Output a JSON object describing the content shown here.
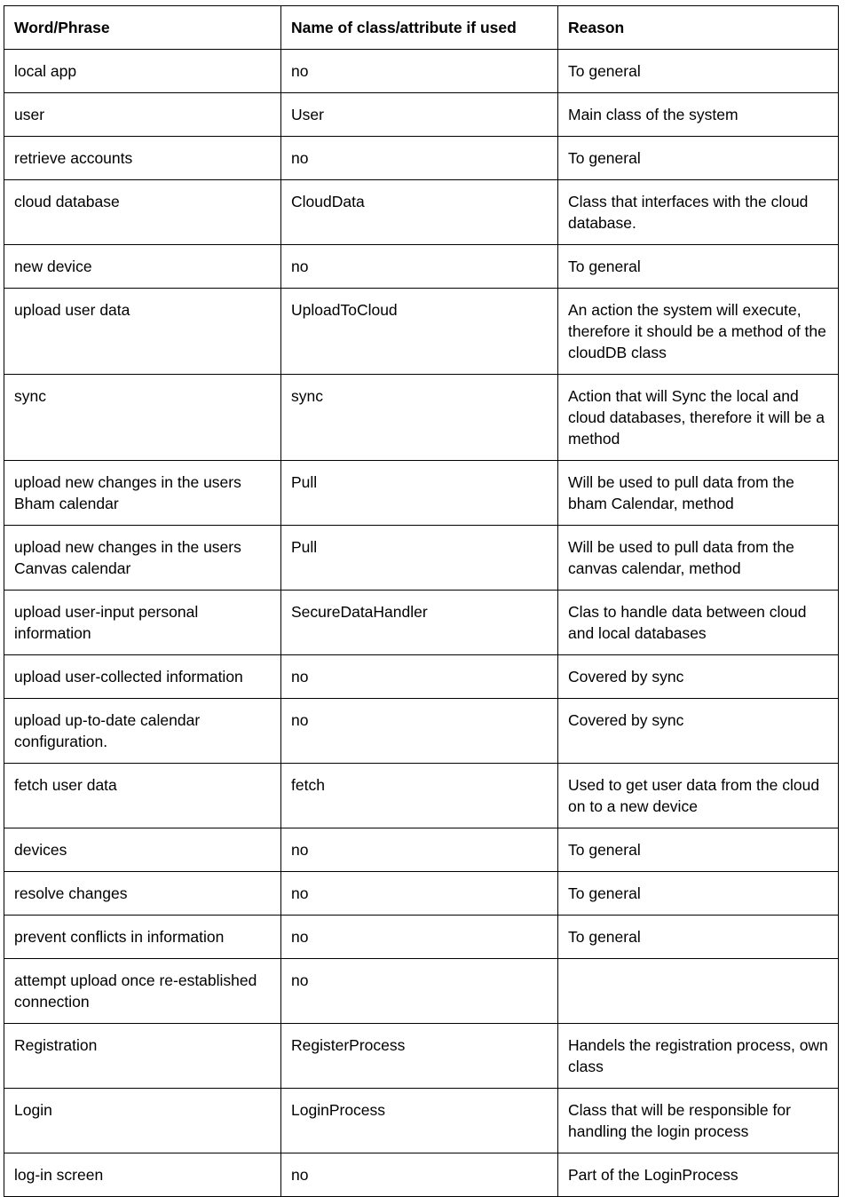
{
  "table": {
    "headers": [
      "Word/Phrase",
      "Name of class/attribute if used",
      "Reason"
    ],
    "rows": [
      [
        "local app",
        "no",
        "To general"
      ],
      [
        "user",
        "User",
        "Main class of the system"
      ],
      [
        "retrieve accounts",
        "no",
        "To general"
      ],
      [
        "cloud database",
        "CloudData",
        "Class that interfaces with the cloud database."
      ],
      [
        "new device",
        "no",
        "To general"
      ],
      [
        "upload user data",
        "UploadToCloud",
        "An action the system will execute, therefore it should be a method of the cloudDB class"
      ],
      [
        "sync",
        "sync",
        "Action that will Sync the local and cloud databases, therefore it will be a method"
      ],
      [
        "upload new changes in the users Bham calendar",
        "Pull",
        "Will be used to pull data from the bham Calendar, method"
      ],
      [
        "upload new changes in the users Canvas calendar",
        "Pull",
        "Will be used to pull data from the canvas calendar, method"
      ],
      [
        "upload user-input personal information",
        "SecureDataHandler",
        "Clas to handle data between cloud and local databases"
      ],
      [
        "upload user-collected information",
        "no",
        "Covered by sync"
      ],
      [
        "upload up-to-date calendar configuration.",
        "no",
        "Covered by sync"
      ],
      [
        "fetch user data",
        "fetch",
        "Used to get user data from the cloud on to a new device"
      ],
      [
        "devices",
        "no",
        "To general"
      ],
      [
        "resolve changes",
        "no",
        "To general"
      ],
      [
        "prevent conflicts in information",
        "no",
        "To general"
      ],
      [
        "attempt upload once re-established connection",
        "no",
        ""
      ],
      [
        "Registration",
        "RegisterProcess",
        "Handels the registration process, own class"
      ],
      [
        "Login",
        "LoginProcess",
        "Class that will be responsible for handling the login process"
      ],
      [
        "log-in screen",
        "no",
        "Part of the LoginProcess"
      ]
    ]
  }
}
